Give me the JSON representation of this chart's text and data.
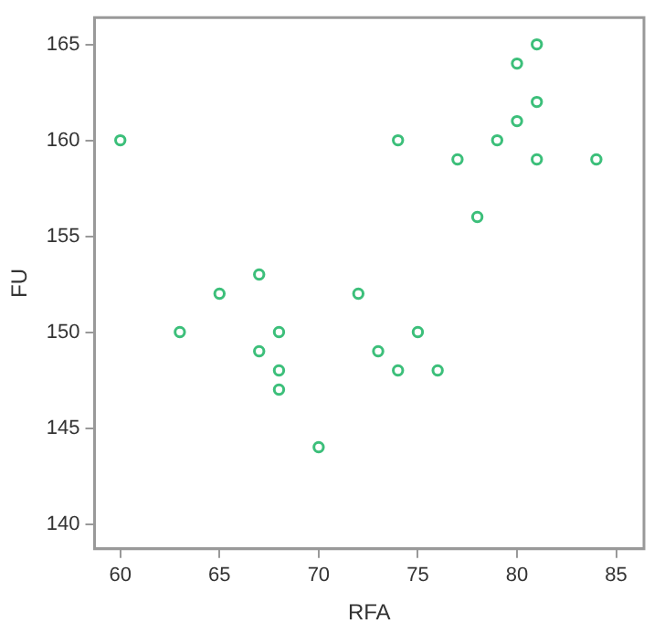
{
  "chart_data": {
    "type": "scatter",
    "xlabel": "RFA",
    "ylabel": "FU",
    "x": [
      60,
      63,
      65,
      67,
      67,
      68,
      68,
      68,
      70,
      72,
      73,
      74,
      74,
      75,
      76,
      77,
      78,
      79,
      80,
      80,
      81,
      81,
      81,
      84
    ],
    "values": [
      160,
      150,
      152,
      153,
      149,
      150,
      148,
      147,
      144,
      152,
      149,
      160,
      148,
      150,
      148,
      159,
      156,
      160,
      164,
      161,
      165,
      162,
      159,
      159
    ],
    "color": "#3cbf7a",
    "marker": "circle",
    "xlim": [
      58.7,
      86.4
    ],
    "xticks": [
      60,
      65,
      70,
      75,
      80,
      85
    ],
    "ylim": [
      138.7,
      166.4
    ],
    "yticks": [
      140,
      145,
      150,
      155,
      160,
      165
    ],
    "grid": false,
    "legend": false
  }
}
